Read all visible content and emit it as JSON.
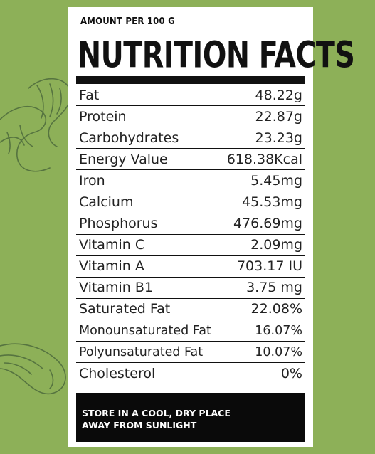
{
  "panel": {
    "amount_label": "AMOUNT PER  100 G",
    "title": "NUTRITION FACTS"
  },
  "nutrients": [
    {
      "name": "Fat",
      "value": "48.22g"
    },
    {
      "name": "Protein",
      "value": "22.87g"
    },
    {
      "name": "Carbohydrates",
      "value": "23.23g"
    },
    {
      "name": "Energy Value",
      "value": "618.38Kcal"
    },
    {
      "name": "Iron",
      "value": "5.45mg"
    },
    {
      "name": "Calcium",
      "value": "45.53mg"
    },
    {
      "name": "Phosphorus",
      "value": "476.69mg"
    },
    {
      "name": "Vitamin C",
      "value": "2.09mg"
    },
    {
      "name": "Vitamin A",
      "value": "703.17 IU"
    },
    {
      "name": "Vitamin B1",
      "value": "3.75 mg"
    },
    {
      "name": "Saturated Fat",
      "value": "22.08%"
    },
    {
      "name": "Monounsaturated Fat",
      "value": "16.07%"
    },
    {
      "name": "Polyunsaturated Fat",
      "value": "10.07%"
    },
    {
      "name": "Cholesterol",
      "value": "0%"
    }
  ],
  "footer": {
    "line1": "STORE IN A COOL, DRY PLACE",
    "line2": "AWAY FROM SUNLIGHT"
  },
  "colors": {
    "background": "#8db058",
    "panel": "#ffffff",
    "footer": "#0a0a0a",
    "sketch": "#4d6a3c"
  },
  "decorations": [
    "cashew-sketch-icon",
    "cashew-sketch-icon"
  ]
}
